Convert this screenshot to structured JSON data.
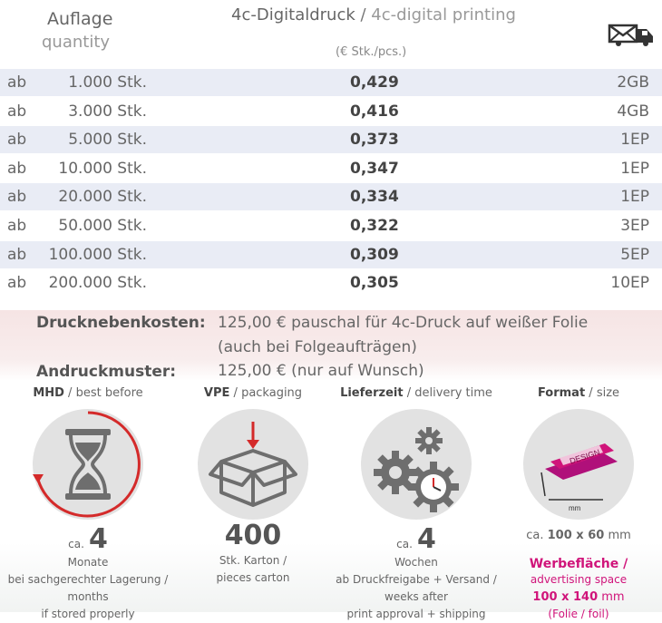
{
  "header": {
    "quantity_de": "Auflage",
    "quantity_en": "quantity",
    "print_de": "4c-Digitaldruck",
    "print_sep": " / ",
    "print_en": "4c-digital printing",
    "unit": "(€ Stk./pcs.)",
    "shipping_icon": "envelope-truck-icon"
  },
  "rows": [
    {
      "ab": "ab",
      "qty": "1.000 Stk.",
      "price": "0,429",
      "ship": "2GB"
    },
    {
      "ab": "ab",
      "qty": "3.000 Stk.",
      "price": "0,416",
      "ship": "4GB"
    },
    {
      "ab": "ab",
      "qty": "5.000 Stk.",
      "price": "0,373",
      "ship": "1EP"
    },
    {
      "ab": "ab",
      "qty": "10.000 Stk.",
      "price": "0,347",
      "ship": "1EP"
    },
    {
      "ab": "ab",
      "qty": "20.000 Stk.",
      "price": "0,334",
      "ship": "1EP"
    },
    {
      "ab": "ab",
      "qty": "50.000 Stk.",
      "price": "0,322",
      "ship": "3EP"
    },
    {
      "ab": "ab",
      "qty": "100.000 Stk.",
      "price": "0,309",
      "ship": "5EP"
    },
    {
      "ab": "ab",
      "qty": "200.000 Stk.",
      "price": "0,305",
      "ship": "10EP"
    }
  ],
  "costs": {
    "extra_label": "Drucknebenkosten:",
    "extra_line1": "125,00 € pauschal für 4c-Druck auf weißer Folie",
    "extra_line2": "(auch bei Folgeaufträgen)",
    "proof_label": "Andruckmuster:",
    "proof_text": "125,00 € (nur auf Wunsch)"
  },
  "features": {
    "mhd": {
      "title_de": "MHD",
      "title_en": "best before",
      "ca": "ca.",
      "value": "4",
      "line1": "Monate",
      "line2": "bei sachgerechter Lagerung /",
      "line3": "months",
      "line4": "if stored properly",
      "icon": "hourglass-icon"
    },
    "vpe": {
      "title_de": "VPE",
      "title_en": "packaging",
      "value": "400",
      "line1": "Stk. Karton /",
      "line2": "pieces carton",
      "icon": "box-icon"
    },
    "delivery": {
      "title_de": "Lieferzeit",
      "title_en": "delivery time",
      "ca": "ca.",
      "value": "4",
      "line1": "Wochen",
      "line2": "ab Druckfreigabe + Versand /",
      "line3": "weeks after",
      "line4": "print approval + shipping",
      "icon": "gears-clock-icon"
    },
    "format": {
      "title_de": "Format",
      "title_en": "size",
      "icon_text": "DESIGN",
      "icon_unit": "mm",
      "size_ca": "ca.",
      "size_value": "100 x 60",
      "size_unit": "mm",
      "adv_de": "Werbefläche",
      "adv_en": "advertising space",
      "adv_size": "100 x 140",
      "adv_unit": "mm",
      "adv_note": "(Folie / foil)",
      "icon": "wrapper-size-icon"
    }
  },
  "colors": {
    "accent": "#d0147a",
    "row_alt": "#e9ecf5",
    "cost_bg": "#f6e4e4",
    "red": "#d42a2a"
  }
}
